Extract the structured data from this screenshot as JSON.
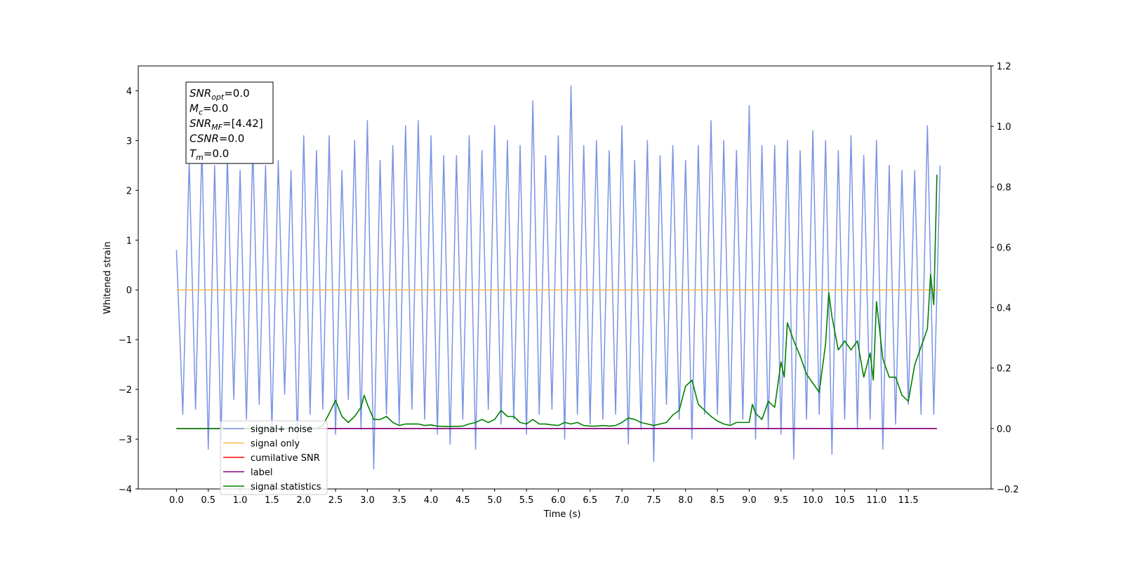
{
  "chart_data": {
    "type": "line",
    "xlabel": "Time (s)",
    "ylabel": "Whitened strain",
    "xlim": [
      -0.6,
      12.8
    ],
    "ylim": [
      -4,
      4.5
    ],
    "y2lim": [
      -0.2,
      1.2
    ],
    "xticks": [
      {
        "value": 0,
        "label": "0.0"
      },
      0.5,
      {
        "value": 1,
        "label": "1.0"
      },
      1.5,
      {
        "value": 2,
        "label": "2.0"
      },
      2.5,
      {
        "value": 3,
        "label": "3.0"
      },
      3.5,
      {
        "value": 4,
        "label": "4.0"
      },
      4.5,
      {
        "value": 5,
        "label": "5.0"
      },
      5.5,
      {
        "value": 6,
        "label": "6.0"
      },
      6.5,
      {
        "value": 7,
        "label": "7.0"
      },
      7.5,
      {
        "value": 8,
        "label": "8.0"
      },
      8.5,
      {
        "value": 9,
        "label": "9.0"
      },
      9.5,
      {
        "value": 10,
        "label": "10.0"
      },
      10.5,
      {
        "value": 11,
        "label": "11.0"
      },
      11.5
    ],
    "yticks": [
      {
        "value": -4,
        "label": "−4"
      },
      {
        "value": -3,
        "label": "−3"
      },
      {
        "value": -2,
        "label": "−2"
      },
      {
        "value": -1,
        "label": "−1"
      },
      0,
      1,
      2,
      3,
      4
    ],
    "y2ticks": [
      {
        "value": -0.2,
        "label": "−0.2"
      },
      {
        "value": 0,
        "label": "0.0"
      },
      0.2,
      0.4,
      0.6,
      0.8,
      {
        "value": 1,
        "label": "1.0"
      },
      1.2
    ],
    "legend": "lower left",
    "annotation": [
      {
        "base": "SNR",
        "sub": "opt",
        "rest": "=0.0"
      },
      {
        "base": "M",
        "sub": "c",
        "rest": "=0.0"
      },
      {
        "base": "SNR",
        "sub": "MF",
        "rest": "=[4.42]"
      },
      {
        "base": "CSNR",
        "sub": null,
        "rest": "=0.0"
      },
      {
        "base": "T",
        "sub": "m",
        "rest": "=0.0"
      }
    ],
    "series": [
      {
        "name": "signal+ noise",
        "color": "#7994e6",
        "x": [
          0,
          0.1,
          0.2,
          0.3,
          0.4,
          0.5,
          0.6,
          0.7,
          0.8,
          0.9,
          1,
          1.1,
          1.2,
          1.3,
          1.4,
          1.5,
          1.6,
          1.7,
          1.8,
          1.9,
          2,
          2.1,
          2.2,
          2.3,
          2.4,
          2.5,
          2.6,
          2.7,
          2.8,
          2.9,
          3,
          3.1,
          3.2,
          3.3,
          3.4,
          3.5,
          3.6,
          3.7,
          3.8,
          3.9,
          4,
          4.1,
          4.2,
          4.3,
          4.4,
          4.5,
          4.6,
          4.7,
          4.8,
          4.9,
          5,
          5.1,
          5.2,
          5.3,
          5.4,
          5.5,
          5.6,
          5.7,
          5.8,
          5.9,
          6,
          6.1,
          6.2,
          6.3,
          6.4,
          6.5,
          6.6,
          6.7,
          6.8,
          6.9,
          7,
          7.1,
          7.2,
          7.3,
          7.4,
          7.5,
          7.6,
          7.7,
          7.8,
          7.9,
          8,
          8.1,
          8.2,
          8.3,
          8.4,
          8.5,
          8.6,
          8.7,
          8.8,
          8.9,
          9,
          9.1,
          9.2,
          9.3,
          9.4,
          9.5,
          9.6,
          9.7,
          9.8,
          9.9,
          10,
          10.1,
          10.2,
          10.3,
          10.4,
          10.5,
          10.6,
          10.7,
          10.8,
          10.9,
          11,
          11.1,
          11.2,
          11.3,
          11.4,
          11.5,
          11.6,
          11.7,
          11.8,
          11.9,
          12
        ],
        "values": [
          0.8,
          -2.5,
          2.6,
          -2.4,
          2.9,
          -3.2,
          2.5,
          -3.0,
          2.7,
          -2.2,
          2.4,
          -2.6,
          2.9,
          -2.3,
          2.5,
          -2.8,
          2.6,
          -2.1,
          2.4,
          -3.0,
          3.1,
          -2.5,
          2.8,
          -2.4,
          3.1,
          -2.9,
          2.4,
          -2.2,
          3.0,
          -2.8,
          3.4,
          -3.6,
          2.6,
          -2.5,
          2.9,
          -2.7,
          3.3,
          -2.4,
          3.4,
          -2.6,
          3.1,
          -2.9,
          2.7,
          -3.1,
          2.7,
          -2.6,
          3.1,
          -3.2,
          2.8,
          -2.4,
          3.3,
          -2.7,
          3.0,
          -2.6,
          2.9,
          -2.9,
          3.8,
          -2.5,
          2.7,
          -2.4,
          3.1,
          -3.0,
          4.1,
          -2.5,
          2.9,
          -2.7,
          3.0,
          -2.6,
          2.8,
          -2.5,
          3.3,
          -3.1,
          2.6,
          -2.8,
          3.0,
          -3.45,
          2.7,
          -2.3,
          2.9,
          -2.6,
          2.6,
          -3.0,
          2.9,
          -2.5,
          3.4,
          -2.5,
          3.0,
          -2.7,
          2.8,
          -2.6,
          3.7,
          -3.0,
          2.9,
          -2.8,
          2.9,
          -2.9,
          3.0,
          -3.4,
          2.8,
          -2.6,
          3.2,
          -2.5,
          3.0,
          -3.3,
          2.8,
          -2.6,
          3.1,
          -2.8,
          2.7,
          -2.6,
          3.0,
          -3.2,
          2.5,
          -2.7,
          2.4,
          -2.3,
          2.4,
          -2.5,
          3.3,
          -2.5,
          2.5
        ]
      },
      {
        "name": "signal only",
        "color": "#ffb84d",
        "x": [
          0,
          12
        ],
        "values": [
          0,
          0
        ]
      },
      {
        "name": "cumilative SNR",
        "color": "#ff0000",
        "axis": "y2",
        "x": [
          0,
          11.95
        ],
        "values": [
          0,
          0
        ]
      },
      {
        "name": "label",
        "color": "#800080",
        "axis": "y2",
        "x": [
          0,
          11.95
        ],
        "values": [
          0,
          0
        ]
      },
      {
        "name": "signal statistics",
        "color": "#008000",
        "axis": "y2",
        "x": [
          0,
          2.2,
          2.3,
          2.4,
          2.5,
          2.6,
          2.7,
          2.8,
          2.9,
          2.95,
          3,
          3.1,
          3.2,
          3.3,
          3.4,
          3.5,
          3.6,
          3.7,
          3.8,
          3.9,
          4,
          4.1,
          4.2,
          4.3,
          4.4,
          4.5,
          4.6,
          4.7,
          4.8,
          4.9,
          5,
          5.1,
          5.2,
          5.3,
          5.4,
          5.5,
          5.6,
          5.7,
          5.8,
          5.9,
          6,
          6.1,
          6.2,
          6.3,
          6.4,
          6.5,
          6.6,
          6.7,
          6.8,
          6.9,
          7,
          7.1,
          7.2,
          7.3,
          7.4,
          7.5,
          7.6,
          7.7,
          7.8,
          7.9,
          8,
          8.1,
          8.2,
          8.3,
          8.4,
          8.5,
          8.6,
          8.7,
          8.8,
          8.9,
          9,
          9.05,
          9.1,
          9.2,
          9.3,
          9.4,
          9.5,
          9.55,
          9.6,
          9.7,
          9.8,
          9.9,
          10,
          10.1,
          10.2,
          10.25,
          10.3,
          10.4,
          10.5,
          10.6,
          10.7,
          10.8,
          10.9,
          10.95,
          11,
          11.1,
          11.2,
          11.3,
          11.4,
          11.5,
          11.6,
          11.7,
          11.8,
          11.85,
          11.9,
          11.95
        ],
        "values": [
          0,
          0,
          0.01,
          0.05,
          0.093,
          0.04,
          0.02,
          0.04,
          0.07,
          0.11,
          0.08,
          0.03,
          0.03,
          0.04,
          0.02,
          0.01,
          0.015,
          0.015,
          0.015,
          0.01,
          0.012,
          0.008,
          0.007,
          0.007,
          0.007,
          0.008,
          0.015,
          0.02,
          0.03,
          0.02,
          0.03,
          0.06,
          0.04,
          0.04,
          0.02,
          0.015,
          0.03,
          0.015,
          0.015,
          0.012,
          0.01,
          0.02,
          0.015,
          0.02,
          0.01,
          0.008,
          0.008,
          0.01,
          0.008,
          0.01,
          0.02,
          0.035,
          0.03,
          0.02,
          0.015,
          0.01,
          0.015,
          0.02,
          0.045,
          0.06,
          0.14,
          0.16,
          0.08,
          0.06,
          0.04,
          0.025,
          0.015,
          0.01,
          0.02,
          0.02,
          0.02,
          0.08,
          0.05,
          0.03,
          0.09,
          0.07,
          0.22,
          0.17,
          0.35,
          0.29,
          0.24,
          0.18,
          0.15,
          0.12,
          0.28,
          0.45,
          0.37,
          0.26,
          0.29,
          0.26,
          0.29,
          0.17,
          0.25,
          0.16,
          0.42,
          0.23,
          0.17,
          0.17,
          0.11,
          0.09,
          0.21,
          0.27,
          0.33,
          0.51,
          0.41,
          0.84
        ]
      }
    ]
  }
}
